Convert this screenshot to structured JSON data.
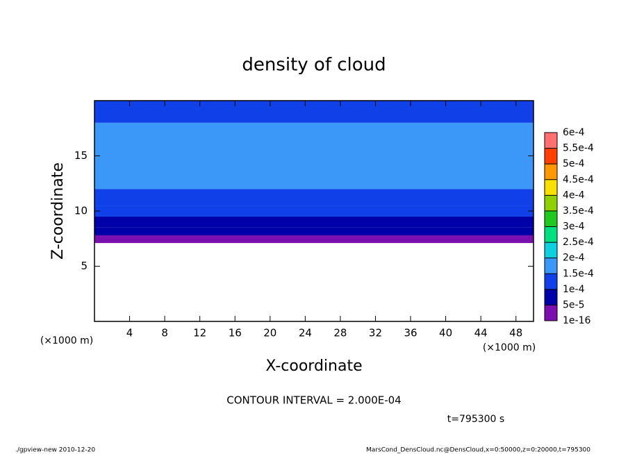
{
  "chart_data": {
    "type": "contour",
    "title": "density of cloud",
    "x_label": "X-coordinate",
    "y_label": "Z-coordinate",
    "x_unit": "(×1000 m)",
    "xlim": [
      0,
      50
    ],
    "xticks": [
      4,
      8,
      12,
      16,
      20,
      24,
      28,
      32,
      36,
      40,
      44,
      48
    ],
    "ylim": [
      0,
      20
    ],
    "yticks": [
      5,
      10,
      15
    ],
    "z_edges": [
      7.1,
      7.8,
      8.5,
      9.5,
      10.5,
      12,
      18,
      20
    ],
    "values": [
      2e-05,
      7e-05,
      9e-05,
      0.00012,
      0.00014,
      0.00017,
      0.00014
    ],
    "levels": [
      {
        "value": 1e-16,
        "label": "1e-16"
      },
      {
        "value": 5e-05,
        "label": "5e-5"
      },
      {
        "value": 0.0001,
        "label": "1e-4"
      },
      {
        "value": 0.00015,
        "label": "1.5e-4"
      },
      {
        "value": 0.0002,
        "label": "2e-4"
      },
      {
        "value": 0.00025,
        "label": "2.5e-4"
      },
      {
        "value": 0.0003,
        "label": "3e-4"
      },
      {
        "value": 0.00035,
        "label": "3.5e-4"
      },
      {
        "value": 0.0004,
        "label": "4e-4"
      },
      {
        "value": 0.00045,
        "label": "4.5e-4"
      },
      {
        "value": 0.0005,
        "label": "5e-4"
      },
      {
        "value": 0.00055,
        "label": "5.5e-4"
      },
      {
        "value": 0.0006,
        "label": "6e-4"
      }
    ],
    "colors": [
      "#7a10b0",
      "#0000a8",
      "#1040e8",
      "#3c98f8",
      "#10d0e0",
      "#00e080",
      "#20c820",
      "#90d000",
      "#f8e000",
      "#ff9800",
      "#ff4000",
      "#ff7070"
    ],
    "annotation": "CONTOUR INTERVAL = 2.000E-04",
    "time_label": "t=795300 s",
    "footer_left": "./gpview-new  2010-12-20",
    "footer_right": "MarsCond_DensCloud.nc@DensCloud,x=0:50000,z=0:20000,t=795300"
  }
}
